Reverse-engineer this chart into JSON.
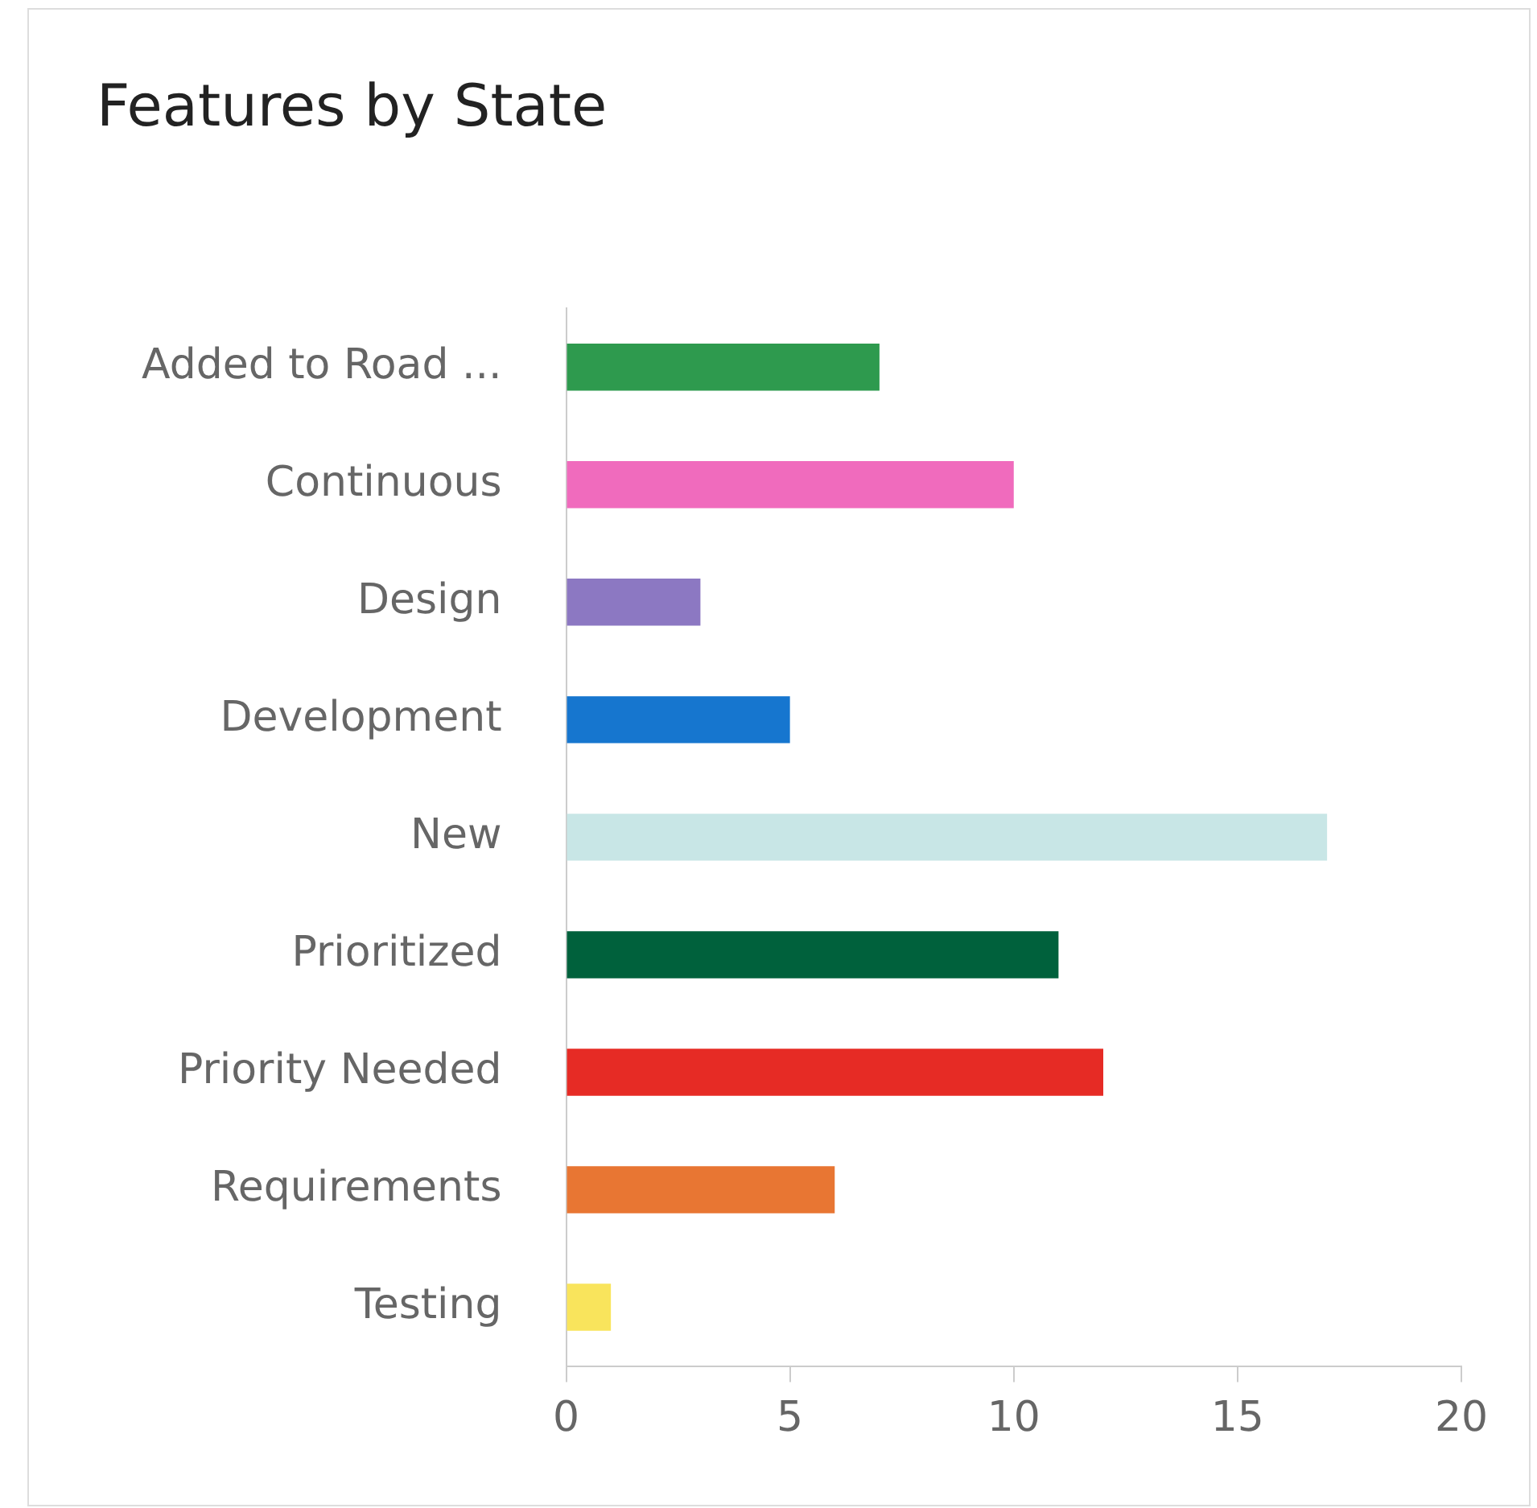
{
  "chart_data": {
    "type": "bar",
    "orientation": "horizontal",
    "title": "Features by State",
    "categories": [
      "Added to Road ...",
      "Continuous",
      "Design",
      "Development",
      "New",
      "Prioritized",
      "Priority Needed",
      "Requirements",
      "Testing"
    ],
    "values": [
      7,
      10,
      3,
      5,
      17,
      11,
      12,
      6,
      1
    ],
    "colors": [
      "#2e9a4e",
      "#f06bbd",
      "#8c78c2",
      "#1676cf",
      "#c8e6e6",
      "#00613c",
      "#e62b25",
      "#e87633",
      "#f9e45c"
    ],
    "xlim": [
      0,
      20
    ],
    "xticks": [
      0,
      5,
      10,
      15,
      20
    ],
    "grid": false,
    "legend": false
  }
}
